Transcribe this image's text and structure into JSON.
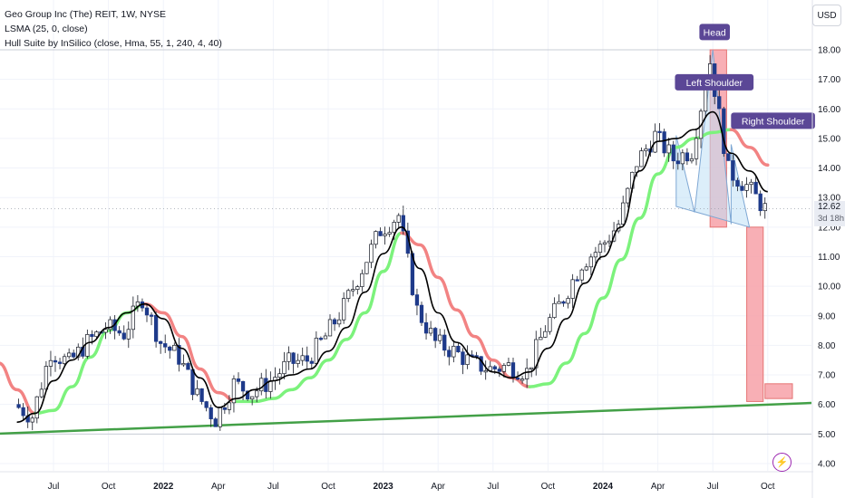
{
  "legend": {
    "symbol": "Geo Group Inc (The) REIT, 1W, NYSE",
    "ind1": "LSMA (25, 0, close)",
    "ind2": "Hull Suite by InSilico (close, Hma, 55, 1, 240, 4, 40)"
  },
  "currency_label": "USD",
  "last_price": "12.62",
  "countdown": "3d 18h",
  "flash_icon": "lightning-icon",
  "colors": {
    "up_body": "#ffffff",
    "down_body": "#1e3a8a",
    "wick": "#131722",
    "lsma": "#000000",
    "hull_up": "#7cf27c",
    "hull_down": "#f28383",
    "trendline": "#43a047",
    "box_fill": "#f7a1a8",
    "box_stroke": "#e57373",
    "pattern_fill": "#bfe0f6",
    "annotation_bg": "#5b4796",
    "grid": "#f0f3fa"
  },
  "chart_data": {
    "type": "candlestick",
    "interval": "1W",
    "y_range": [
      3.85,
      19.0
    ],
    "y_ticks": [
      "4.00",
      "5.00",
      "6.00",
      "7.00",
      "8.00",
      "9.00",
      "10.00",
      "11.00",
      "12.00",
      "13.00",
      "14.00",
      "15.00",
      "16.00",
      "17.00",
      "18.00"
    ],
    "x_ticks": [
      {
        "label": "Jul",
        "date": "2021-07"
      },
      {
        "label": "Oct",
        "date": "2021-10"
      },
      {
        "label": "2022",
        "date": "2022-01"
      },
      {
        "label": "Apr",
        "date": "2022-04"
      },
      {
        "label": "Jul",
        "date": "2022-07"
      },
      {
        "label": "Oct",
        "date": "2022-10"
      },
      {
        "label": "2023",
        "date": "2023-01"
      },
      {
        "label": "Apr",
        "date": "2023-04"
      },
      {
        "label": "Jul",
        "date": "2023-07"
      },
      {
        "label": "Oct",
        "date": "2023-10"
      },
      {
        "label": "2024",
        "date": "2024-01"
      },
      {
        "label": "Apr",
        "date": "2024-04"
      },
      {
        "label": "Jul",
        "date": "2024-07"
      },
      {
        "label": "Oct",
        "date": "2024-10"
      }
    ],
    "close_path": [
      [
        "2021-05",
        6.0
      ],
      [
        "2021-06",
        5.6
      ],
      [
        "2021-07",
        7.8
      ],
      [
        "2021-08",
        7.4
      ],
      [
        "2021-09",
        8.1
      ],
      [
        "2021-10",
        8.6
      ],
      [
        "2021-11",
        8.4
      ],
      [
        "2021-12",
        9.6
      ],
      [
        "2022-01",
        8.1
      ],
      [
        "2022-02",
        7.6
      ],
      [
        "2022-03",
        6.3
      ],
      [
        "2022-04",
        5.5
      ],
      [
        "2022-05",
        6.7
      ],
      [
        "2022-06",
        6.4
      ],
      [
        "2022-07",
        6.8
      ],
      [
        "2022-08",
        7.4
      ],
      [
        "2022-09",
        7.5
      ],
      [
        "2022-10",
        8.3
      ],
      [
        "2022-11",
        9.3
      ],
      [
        "2022-12",
        10.6
      ],
      [
        "2023-01",
        11.9
      ],
      [
        "2023-02",
        12.4
      ],
      [
        "2023-03",
        9.2
      ],
      [
        "2023-04",
        8.1
      ],
      [
        "2023-05",
        7.8
      ],
      [
        "2023-06",
        7.4
      ],
      [
        "2023-07",
        7.2
      ],
      [
        "2023-08",
        7.3
      ],
      [
        "2023-09",
        7.1
      ],
      [
        "2023-10",
        8.6
      ],
      [
        "2023-11",
        9.6
      ],
      [
        "2023-12",
        10.8
      ],
      [
        "2024-01",
        11.3
      ],
      [
        "2024-02",
        12.1
      ],
      [
        "2024-03",
        14.2
      ],
      [
        "2024-04",
        15.1
      ],
      [
        "2024-05",
        14.3
      ],
      [
        "2024-06",
        14.6
      ],
      [
        "2024-07",
        17.6
      ],
      [
        "2024-08",
        13.9
      ],
      [
        "2024-09",
        13.4
      ],
      [
        "2024-10",
        12.62
      ]
    ],
    "lsma_path": [
      [
        "2021-05",
        5.4
      ],
      [
        "2021-06",
        5.7
      ],
      [
        "2021-07",
        6.8
      ],
      [
        "2021-08",
        7.5
      ],
      [
        "2021-09",
        8.1
      ],
      [
        "2021-10",
        8.6
      ],
      [
        "2021-11",
        9.1
      ],
      [
        "2021-12",
        9.4
      ],
      [
        "2022-01",
        8.9
      ],
      [
        "2022-02",
        7.9
      ],
      [
        "2022-03",
        6.9
      ],
      [
        "2022-04",
        5.9
      ],
      [
        "2022-05",
        6.2
      ],
      [
        "2022-06",
        6.5
      ],
      [
        "2022-07",
        6.8
      ],
      [
        "2022-08",
        7.0
      ],
      [
        "2022-09",
        7.2
      ],
      [
        "2022-10",
        7.8
      ],
      [
        "2022-11",
        8.6
      ],
      [
        "2022-12",
        9.8
      ],
      [
        "2023-01",
        11.1
      ],
      [
        "2023-02",
        12.0
      ],
      [
        "2023-03",
        10.6
      ],
      [
        "2023-04",
        9.1
      ],
      [
        "2023-05",
        8.1
      ],
      [
        "2023-06",
        7.6
      ],
      [
        "2023-07",
        7.1
      ],
      [
        "2023-08",
        6.9
      ],
      [
        "2023-09",
        7.1
      ],
      [
        "2023-10",
        7.9
      ],
      [
        "2023-11",
        8.9
      ],
      [
        "2023-12",
        10.1
      ],
      [
        "2024-01",
        11.0
      ],
      [
        "2024-02",
        12.0
      ],
      [
        "2024-03",
        13.9
      ],
      [
        "2024-04",
        14.9
      ],
      [
        "2024-05",
        15.0
      ],
      [
        "2024-06",
        15.3
      ],
      [
        "2024-07",
        15.9
      ],
      [
        "2024-08",
        14.5
      ],
      [
        "2024-09",
        13.9
      ],
      [
        "2024-10",
        13.2
      ]
    ],
    "hull_path": [
      [
        "2021-04",
        7.4
      ],
      [
        "2021-05",
        6.5
      ],
      [
        "2021-06",
        5.7
      ],
      [
        "2021-07",
        5.8
      ],
      [
        "2021-08",
        6.6
      ],
      [
        "2021-09",
        7.6
      ],
      [
        "2021-10",
        8.5
      ],
      [
        "2021-11",
        9.1
      ],
      [
        "2021-12",
        9.4
      ],
      [
        "2022-01",
        9.1
      ],
      [
        "2022-02",
        8.3
      ],
      [
        "2022-03",
        7.2
      ],
      [
        "2022-04",
        6.4
      ],
      [
        "2022-05",
        6.1
      ],
      [
        "2022-06",
        6.1
      ],
      [
        "2022-07",
        6.2
      ],
      [
        "2022-08",
        6.5
      ],
      [
        "2022-09",
        6.9
      ],
      [
        "2022-10",
        7.5
      ],
      [
        "2022-11",
        8.2
      ],
      [
        "2022-12",
        9.1
      ],
      [
        "2023-01",
        10.5
      ],
      [
        "2023-02",
        11.8
      ],
      [
        "2023-03",
        11.4
      ],
      [
        "2023-04",
        10.3
      ],
      [
        "2023-05",
        9.2
      ],
      [
        "2023-06",
        8.3
      ],
      [
        "2023-07",
        7.5
      ],
      [
        "2023-08",
        6.9
      ],
      [
        "2023-09",
        6.6
      ],
      [
        "2023-10",
        6.7
      ],
      [
        "2023-11",
        7.4
      ],
      [
        "2023-12",
        8.4
      ],
      [
        "2024-01",
        9.6
      ],
      [
        "2024-02",
        10.9
      ],
      [
        "2024-03",
        12.3
      ],
      [
        "2024-04",
        13.8
      ],
      [
        "2024-05",
        14.7
      ],
      [
        "2024-06",
        15.0
      ],
      [
        "2024-07",
        15.2
      ],
      [
        "2024-08",
        15.3
      ],
      [
        "2024-09",
        14.7
      ],
      [
        "2024-10",
        14.1
      ]
    ],
    "hull_segments": [
      {
        "from": "2021-04",
        "to": "2021-06",
        "dir": "down"
      },
      {
        "from": "2021-06",
        "to": "2021-12",
        "dir": "up"
      },
      {
        "from": "2021-12",
        "to": "2022-05",
        "dir": "down"
      },
      {
        "from": "2022-05",
        "to": "2023-02",
        "dir": "up"
      },
      {
        "from": "2023-02",
        "to": "2023-09",
        "dir": "down"
      },
      {
        "from": "2023-09",
        "to": "2024-08",
        "dir": "up"
      },
      {
        "from": "2024-08",
        "to": "2024-10",
        "dir": "down"
      }
    ],
    "trendline": {
      "from": [
        "2021-05",
        5.0
      ],
      "to": [
        "2024-11",
        6.05
      ]
    },
    "pattern": {
      "type": "head-and-shoulders",
      "points": [
        [
          "2024-05",
          12.7
        ],
        [
          "2024-05",
          15.1
        ],
        [
          "2024-06",
          12.5
        ],
        [
          "2024-07",
          18.0
        ],
        [
          "2024-08",
          12.1
        ],
        [
          "2024-08",
          14.8
        ],
        [
          "2024-09",
          12.0
        ]
      ],
      "labels": [
        {
          "text": "Head",
          "at": [
            "2024-07",
            18.6
          ]
        },
        {
          "text": "Left Shoulder",
          "at": [
            "2024-05",
            16.9
          ]
        },
        {
          "text": "Right Shoulder",
          "at": [
            "2024-09",
            15.6
          ]
        }
      ]
    },
    "target_boxes": [
      {
        "from": "2024-07",
        "to": "2024-08",
        "low": 12.0,
        "high": 18.0
      },
      {
        "from": "2024-09",
        "to": "2024-10",
        "low": 6.1,
        "high": 12.0
      },
      {
        "from": "2024-10",
        "to": "2024-11",
        "low": 6.2,
        "high": 6.7
      }
    ],
    "last_close": 12.62
  }
}
